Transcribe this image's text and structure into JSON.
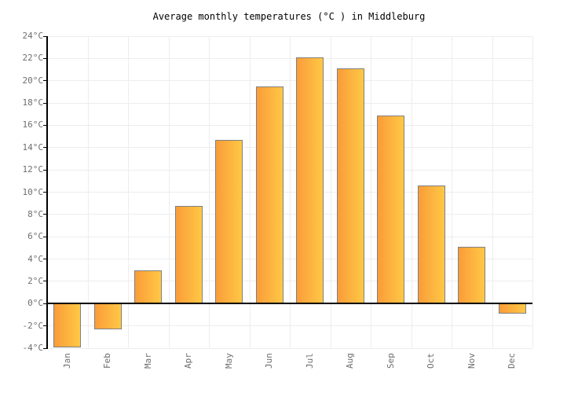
{
  "chart_data": {
    "type": "bar",
    "title": "Average monthly temperatures (°C ) in Middleburg",
    "categories": [
      "Jan",
      "Feb",
      "Mar",
      "Apr",
      "May",
      "Jun",
      "Jul",
      "Aug",
      "Sep",
      "Oct",
      "Nov",
      "Dec"
    ],
    "values": [
      -3.9,
      -2.3,
      3,
      8.8,
      14.7,
      19.5,
      22.1,
      21.1,
      16.9,
      10.6,
      5.1,
      -0.9
    ],
    "unit": "°C",
    "ylabel": "",
    "xlabel": "",
    "ylim": [
      -4,
      24
    ],
    "ytick_step": 2,
    "y_ticks": [
      "24°C",
      "22°C",
      "20°C",
      "18°C",
      "16°C",
      "14°C",
      "12°C",
      "10°C",
      "8°C",
      "6°C",
      "4°C",
      "2°C",
      "0°C",
      "-2°C",
      "-4°C"
    ],
    "grid": true,
    "legend": "none",
    "colors": {
      "bar_gradient_left": "#FA9C39",
      "bar_gradient_right": "#FFC845",
      "bar_border": "#808080",
      "gridline": "#EDEDED",
      "axis": "#000000",
      "tick_label": "#6E6E6E",
      "title": "#000000",
      "background": "#FFFFFF"
    }
  }
}
